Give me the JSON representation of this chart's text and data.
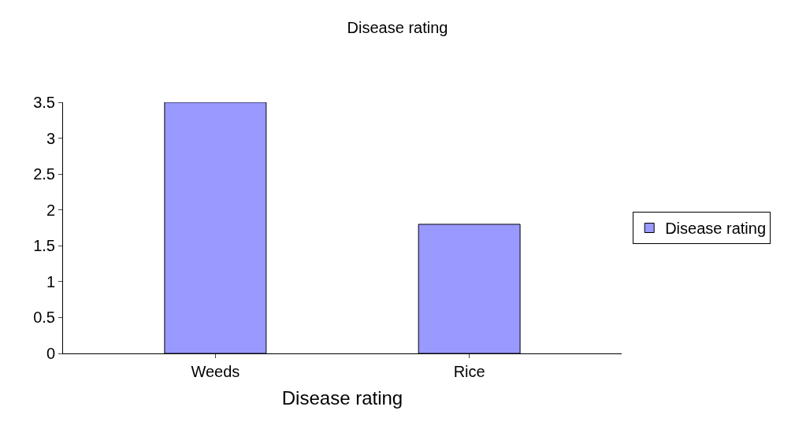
{
  "chart_data": {
    "type": "bar",
    "title": "Disease rating",
    "xlabel": "Disease rating",
    "categories": [
      "Weeds",
      "Rice"
    ],
    "series": [
      {
        "name": "Disease rating",
        "color": "#9999ff",
        "values": [
          3.5,
          1.8
        ]
      }
    ],
    "ylim": [
      0,
      3.5
    ],
    "yticks": [
      0,
      0.5,
      1,
      1.5,
      2,
      2.5,
      3,
      3.5
    ],
    "grid": false,
    "legend": "right"
  }
}
